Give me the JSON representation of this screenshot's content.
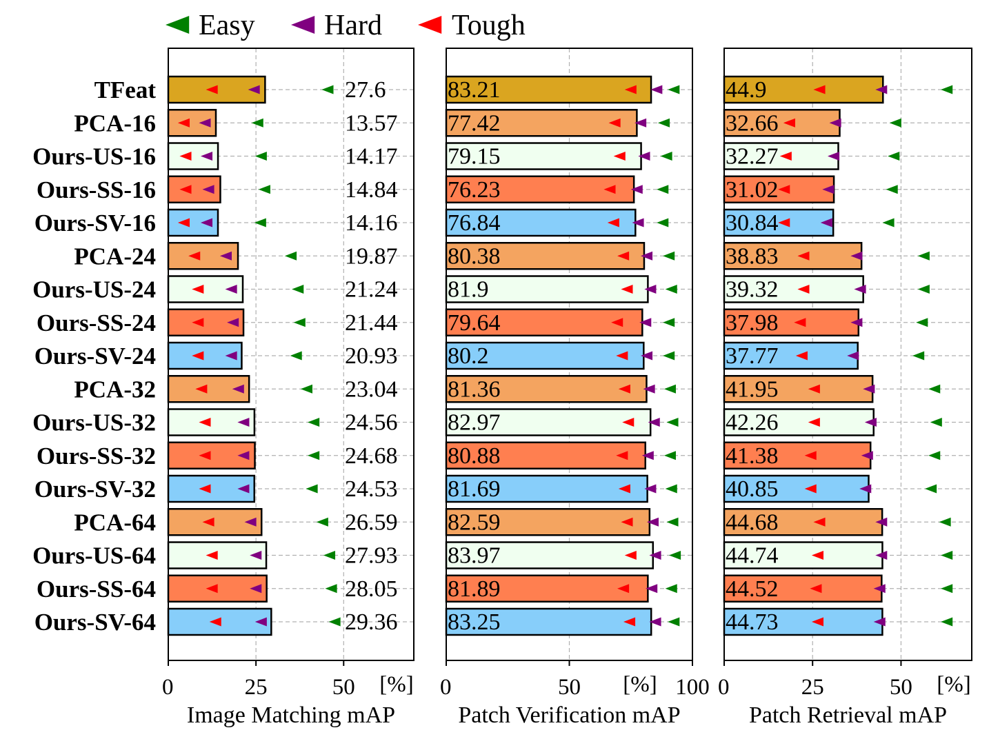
{
  "chart_data": {
    "type": "bar",
    "orientation": "horizontal",
    "legend": {
      "placement": "top",
      "entries": [
        {
          "label": "Easy",
          "color": "#008000"
        },
        {
          "label": "Hard",
          "color": "#800080"
        },
        {
          "label": "Tough",
          "color": "#ff0000"
        }
      ]
    },
    "categories": [
      "TFeat",
      "PCA-16",
      "Ours-US-16",
      "Ours-SS-16",
      "Ours-SV-16",
      "PCA-24",
      "Ours-US-24",
      "Ours-SS-24",
      "Ours-SV-24",
      "PCA-32",
      "Ours-US-32",
      "Ours-SS-32",
      "Ours-SV-32",
      "PCA-64",
      "Ours-US-64",
      "Ours-SS-64",
      "Ours-SV-64"
    ],
    "bar_colors": [
      "#DAA520",
      "#F4A460",
      "#F0FFF0",
      "#FF7F50",
      "#87CEFA",
      "#F4A460",
      "#F0FFF0",
      "#FF7F50",
      "#87CEFA",
      "#F4A460",
      "#F0FFF0",
      "#FF7F50",
      "#87CEFA",
      "#F4A460",
      "#F0FFF0",
      "#FF7F50",
      "#87CEFA"
    ],
    "grid": true,
    "panels": [
      {
        "title": "Image Matching mAP",
        "xlim": [
          0,
          70
        ],
        "ticks": [
          "0",
          "25",
          "50"
        ],
        "tick_values": [
          0,
          25,
          50
        ],
        "unit": "[%]",
        "value_labels": [
          "27.6",
          "13.57",
          "14.17",
          "14.84",
          "14.16",
          "19.87",
          "21.24",
          "21.44",
          "20.93",
          "23.04",
          "24.56",
          "24.68",
          "24.53",
          "26.59",
          "27.93",
          "28.05",
          "29.36"
        ],
        "values": [
          27.6,
          13.57,
          14.17,
          14.84,
          14.16,
          19.87,
          21.24,
          21.44,
          20.93,
          23.04,
          24.56,
          24.68,
          24.53,
          26.59,
          27.93,
          28.05,
          29.36
        ],
        "easy": [
          45.5,
          25.5,
          26.5,
          27.5,
          26.3,
          35.0,
          37.0,
          37.5,
          36.5,
          39.5,
          41.5,
          41.5,
          41.0,
          44.0,
          46.0,
          46.5,
          47.5
        ],
        "hard": [
          24.5,
          10.5,
          11.0,
          11.5,
          11.0,
          16.5,
          18.0,
          18.5,
          18.0,
          20.0,
          21.5,
          21.5,
          21.5,
          23.5,
          25.0,
          25.0,
          26.5
        ],
        "tough": [
          12.5,
          4.5,
          5.0,
          5.0,
          4.5,
          7.5,
          8.5,
          8.5,
          8.5,
          9.5,
          10.5,
          10.5,
          10.5,
          11.5,
          12.5,
          12.5,
          13.5
        ]
      },
      {
        "title": "Patch Verification mAP",
        "xlim": [
          0,
          100
        ],
        "ticks": [
          "0",
          "50",
          "100"
        ],
        "tick_values": [
          0,
          50,
          100
        ],
        "unit": "[%]",
        "value_labels": [
          "83.21",
          "77.42",
          "79.15",
          "76.23",
          "76.84",
          "80.38",
          "81.9",
          "79.64",
          "80.2",
          "81.36",
          "82.97",
          "80.88",
          "81.69",
          "82.59",
          "83.97",
          "81.89",
          "83.25"
        ],
        "values": [
          83.21,
          77.42,
          79.15,
          76.23,
          76.84,
          80.38,
          81.9,
          79.64,
          80.2,
          81.36,
          82.97,
          80.88,
          81.69,
          82.59,
          83.97,
          81.89,
          83.25
        ],
        "easy": [
          92.5,
          88.5,
          89.5,
          88.0,
          88.0,
          90.5,
          91.5,
          90.5,
          90.5,
          91.0,
          92.0,
          91.0,
          91.5,
          92.0,
          93.0,
          91.5,
          92.5
        ],
        "hard": [
          85.5,
          79.0,
          80.5,
          77.5,
          78.0,
          81.5,
          83.0,
          81.0,
          81.5,
          82.5,
          84.5,
          82.0,
          83.0,
          84.0,
          85.0,
          83.5,
          85.0
        ],
        "tough": [
          75.0,
          68.5,
          70.5,
          66.5,
          68.0,
          72.0,
          73.5,
          69.5,
          71.5,
          72.5,
          74.0,
          71.5,
          72.5,
          73.5,
          75.0,
          72.0,
          74.5
        ]
      },
      {
        "title": "Patch Retrieval mAP",
        "xlim": [
          0,
          70
        ],
        "ticks": [
          "0",
          "25",
          "50"
        ],
        "tick_values": [
          0,
          25,
          50
        ],
        "unit": "[%]",
        "value_labels": [
          "44.9",
          "32.66",
          "32.27",
          "31.02",
          "30.84",
          "38.83",
          "39.32",
          "37.98",
          "37.77",
          "41.95",
          "42.26",
          "41.38",
          "40.85",
          "44.68",
          "44.74",
          "44.52",
          "44.73"
        ],
        "values": [
          44.9,
          32.66,
          32.27,
          31.02,
          30.84,
          38.83,
          39.32,
          37.98,
          37.77,
          41.95,
          42.26,
          41.38,
          40.85,
          44.68,
          44.74,
          44.52,
          44.73
        ],
        "easy": [
          63.0,
          48.5,
          48.0,
          47.5,
          46.5,
          56.5,
          56.5,
          56.0,
          55.0,
          59.5,
          60.0,
          59.5,
          58.5,
          62.5,
          63.0,
          63.0,
          63.0
        ],
        "hard": [
          44.5,
          31.5,
          31.0,
          29.5,
          29.0,
          37.5,
          38.5,
          37.5,
          36.5,
          41.0,
          41.5,
          40.5,
          40.0,
          44.5,
          44.5,
          44.0,
          44.0
        ],
        "tough": [
          27.0,
          18.5,
          17.5,
          17.0,
          17.0,
          22.5,
          22.5,
          21.5,
          22.0,
          25.5,
          25.5,
          24.5,
          24.5,
          27.0,
          26.5,
          26.0,
          26.5
        ]
      }
    ]
  }
}
